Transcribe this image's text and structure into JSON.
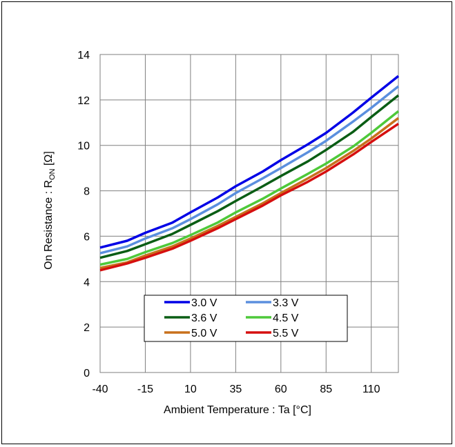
{
  "chart_data": {
    "type": "line",
    "title": "",
    "xlabel": "Ambient Temperature : Ta [°C]",
    "ylabel_main": "On Resistance : R",
    "ylabel_sub": "ON",
    "ylabel_unit": " [Ω]",
    "xlim": [
      -40,
      125
    ],
    "ylim": [
      0,
      14
    ],
    "xticks": [
      -40,
      -15,
      10,
      35,
      60,
      85,
      110
    ],
    "yticks": [
      0,
      2,
      4,
      6,
      8,
      10,
      12,
      14
    ],
    "grid": true,
    "legend_position": "bottom-center",
    "x": [
      -40,
      -25,
      -15,
      0,
      10,
      25,
      35,
      50,
      60,
      75,
      85,
      100,
      110,
      125
    ],
    "series": [
      {
        "name": "3.0 V",
        "color": "#0000e6",
        "values": [
          5.5,
          5.8,
          6.15,
          6.6,
          7.05,
          7.7,
          8.2,
          8.85,
          9.35,
          10.05,
          10.55,
          11.45,
          12.1,
          13.05
        ]
      },
      {
        "name": "3.3 V",
        "color": "#5b8fde",
        "values": [
          5.25,
          5.55,
          5.9,
          6.35,
          6.75,
          7.4,
          7.9,
          8.55,
          9.0,
          9.7,
          10.2,
          11.05,
          11.65,
          12.6
        ]
      },
      {
        "name": "3.6 V",
        "color": "#0a5d14",
        "values": [
          5.05,
          5.35,
          5.65,
          6.1,
          6.5,
          7.1,
          7.55,
          8.2,
          8.65,
          9.3,
          9.8,
          10.6,
          11.25,
          12.2
        ]
      },
      {
        "name": "4.5 V",
        "color": "#4ec93a",
        "values": [
          4.75,
          5.0,
          5.3,
          5.7,
          6.05,
          6.6,
          7.05,
          7.65,
          8.1,
          8.75,
          9.2,
          9.95,
          10.55,
          11.5
        ]
      },
      {
        "name": "5.0 V",
        "color": "#c8701c",
        "values": [
          4.6,
          4.85,
          5.15,
          5.55,
          5.9,
          6.45,
          6.85,
          7.45,
          7.9,
          8.55,
          9.0,
          9.75,
          10.3,
          11.2
        ]
      },
      {
        "name": "5.5 V",
        "color": "#d60f0f",
        "values": [
          4.5,
          4.8,
          5.05,
          5.45,
          5.8,
          6.35,
          6.75,
          7.35,
          7.8,
          8.4,
          8.85,
          9.6,
          10.15,
          10.95
        ]
      }
    ]
  }
}
